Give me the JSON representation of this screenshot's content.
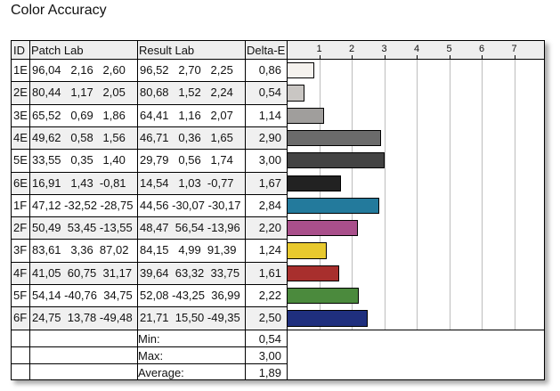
{
  "title": "Color Accuracy",
  "headers": {
    "id": "ID",
    "patch": "Patch Lab",
    "result": "Result Lab",
    "delta": "Delta-E"
  },
  "chart_data": {
    "type": "bar",
    "orientation": "horizontal",
    "title": "Color Accuracy",
    "xlim": [
      0,
      8
    ],
    "x_ticks": [
      "1",
      "2",
      "3",
      "4",
      "5",
      "6",
      "7"
    ],
    "grid": true,
    "rows": [
      {
        "id": "1E",
        "patch": "96,04   2,16   2,60",
        "result": "96,52   2,70   2,25",
        "delta": "0,86",
        "value": 0.86,
        "color": "#f5f2ee"
      },
      {
        "id": "2E",
        "patch": "80,44   1,17   2,05",
        "result": "80,68   1,52   2,24",
        "delta": "0,54",
        "value": 0.54,
        "color": "#c9c6c3"
      },
      {
        "id": "3E",
        "patch": "65,52   0,69   1,86",
        "result": "64,41   1,16   2,07",
        "delta": "1,14",
        "value": 1.14,
        "color": "#a09e9c"
      },
      {
        "id": "4E",
        "patch": "49,62   0,58   1,56",
        "result": "46,71   0,36   1,65",
        "delta": "2,90",
        "value": 2.9,
        "color": "#6b6b6b"
      },
      {
        "id": "5E",
        "patch": "33,55   0,35   1,40",
        "result": "29,79   0,56   1,74",
        "delta": "3,00",
        "value": 3.0,
        "color": "#434343"
      },
      {
        "id": "6E",
        "patch": "16,91   1,43  -0,81",
        "result": "14,54   1,03  -0,77",
        "delta": "1,67",
        "value": 1.67,
        "color": "#222222"
      },
      {
        "id": "1F",
        "patch": "47,12 -32,52 -28,75",
        "result": "44,56 -30,07 -30,17",
        "delta": "2,84",
        "value": 2.84,
        "color": "#237a9c"
      },
      {
        "id": "2F",
        "patch": "50,49  53,45 -13,55",
        "result": "48,47  56,54 -13,96",
        "delta": "2,20",
        "value": 2.2,
        "color": "#a94f8b"
      },
      {
        "id": "3F",
        "patch": "83,61   3,36  87,02",
        "result": "84,15   4,99  91,39",
        "delta": "1,24",
        "value": 1.24,
        "color": "#e8c92e"
      },
      {
        "id": "4F",
        "patch": "41,05  60,75  31,17",
        "result": "39,64  63,32  33,75",
        "delta": "1,61",
        "value": 1.61,
        "color": "#a82f2d"
      },
      {
        "id": "5F",
        "patch": "54,14 -40,76  34,75",
        "result": "52,08 -43,25  36,99",
        "delta": "2,22",
        "value": 2.22,
        "color": "#4b8a3d"
      },
      {
        "id": "6F",
        "patch": "24,75  13,78 -49,48",
        "result": "21,71  15,50 -49,35",
        "delta": "2,50",
        "value": 2.5,
        "color": "#1f2f7e"
      }
    ]
  },
  "summary": [
    {
      "label": "Min:",
      "value": "0,54"
    },
    {
      "label": "Max:",
      "value": "3,00"
    },
    {
      "label": "Average:",
      "value": "1,89"
    }
  ]
}
